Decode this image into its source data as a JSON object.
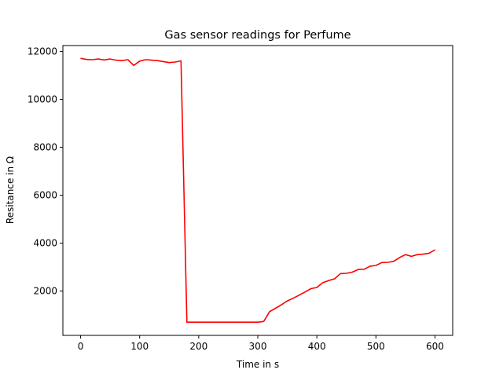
{
  "chart_data": {
    "type": "line",
    "title": "Gas sensor readings for Perfume",
    "xlabel": "Time in s",
    "ylabel": "Resitance in Ω",
    "xlim": [
      -30,
      630
    ],
    "ylim": [
      150,
      12250
    ],
    "xticks": [
      0,
      100,
      200,
      300,
      400,
      500,
      600
    ],
    "yticks": [
      2000,
      4000,
      6000,
      8000,
      10000,
      12000
    ],
    "grid": false,
    "series": [
      {
        "color": "#ff0000",
        "x": [
          0,
          10,
          20,
          30,
          40,
          50,
          60,
          70,
          80,
          90,
          100,
          110,
          120,
          130,
          140,
          150,
          160,
          170,
          180,
          190,
          200,
          210,
          220,
          230,
          240,
          250,
          260,
          270,
          280,
          290,
          300,
          310,
          320,
          330,
          340,
          350,
          360,
          370,
          380,
          390,
          400,
          410,
          420,
          430,
          440,
          450,
          460,
          470,
          480,
          490,
          500,
          510,
          520,
          530,
          540,
          550,
          560,
          570,
          580,
          590,
          600
        ],
        "y": [
          11720,
          11670,
          11660,
          11690,
          11650,
          11690,
          11640,
          11620,
          11660,
          11420,
          11600,
          11660,
          11640,
          11620,
          11580,
          11540,
          11560,
          11610,
          700,
          700,
          700,
          700,
          700,
          700,
          700,
          700,
          700,
          700,
          700,
          700,
          700,
          730,
          1140,
          1280,
          1430,
          1590,
          1700,
          1830,
          1960,
          2100,
          2150,
          2350,
          2440,
          2510,
          2730,
          2740,
          2790,
          2900,
          2910,
          3040,
          3070,
          3190,
          3200,
          3240,
          3400,
          3520,
          3450,
          3520,
          3540,
          3580,
          3720
        ]
      }
    ]
  }
}
